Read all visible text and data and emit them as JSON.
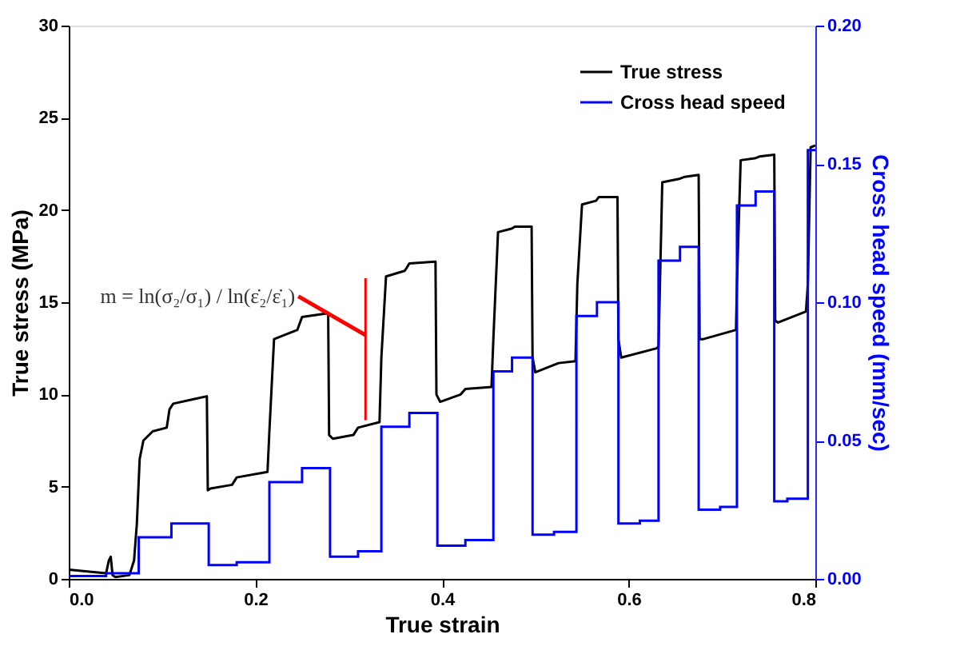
{
  "chart_data": {
    "type": "line",
    "xlabel": "True strain",
    "ylabel": "True stress (MPa)",
    "y2label": "Cross head speed (mm/sec)",
    "xlim": [
      0,
      0.8
    ],
    "xticks": [
      {
        "value": 0,
        "label": "0.0"
      },
      {
        "value": 0.2,
        "label": "0.2"
      },
      {
        "value": 0.4,
        "label": "0.4"
      },
      {
        "value": 0.6,
        "label": "0.6"
      },
      {
        "value": 0.8,
        "label": "0.8"
      }
    ],
    "ylim": [
      0,
      30
    ],
    "yticks": [
      0,
      5,
      10,
      15,
      20,
      25,
      30
    ],
    "y2lim": [
      0,
      0.2
    ],
    "y2ticks": [
      {
        "value": 0,
        "label": "0.00"
      },
      {
        "value": 0.05,
        "label": "0.05"
      },
      {
        "value": 0.1,
        "label": "0.10"
      },
      {
        "value": 0.15,
        "label": "0.15"
      },
      {
        "value": 0.2,
        "label": "0.20"
      }
    ],
    "legend": "top right",
    "grid": false,
    "annotations": [
      "m = ln(σ₂/σ₁) / ln(ε̇₂/ε̇₁)"
    ],
    "series": [
      {
        "name": "True stress",
        "color": "#000000",
        "x": [
          0,
          0.02,
          0.04,
          0.043,
          0.045,
          0.047,
          0.05,
          0.065,
          0.07,
          0.073,
          0.076,
          0.08,
          0.09,
          0.105,
          0.108,
          0.112,
          0.13,
          0.148,
          0.149,
          0.152,
          0.175,
          0.18,
          0.213,
          0.215,
          0.22,
          0.245,
          0.25,
          0.278,
          0.279,
          0.283,
          0.305,
          0.31,
          0.333,
          0.335,
          0.34,
          0.36,
          0.365,
          0.393,
          0.394,
          0.398,
          0.42,
          0.425,
          0.453,
          0.455,
          0.46,
          0.475,
          0.478,
          0.496,
          0.497,
          0.5,
          0.52,
          0.525,
          0.543,
          0.545,
          0.55,
          0.565,
          0.568,
          0.588,
          0.589,
          0.592,
          0.63,
          0.632,
          0.636,
          0.655,
          0.66,
          0.675,
          0.676,
          0.68,
          0.715,
          0.716,
          0.72,
          0.735,
          0.74,
          0.756,
          0.757,
          0.76,
          0.79,
          0.792,
          0.795,
          0.8
        ],
        "values": [
          0.5,
          0.4,
          0.3,
          1.0,
          1.2,
          0.2,
          0.1,
          0.2,
          1.0,
          3,
          6.5,
          7.5,
          8.0,
          8.2,
          9.2,
          9.5,
          9.7,
          9.9,
          4.8,
          4.9,
          5.1,
          5.5,
          5.8,
          8,
          13.0,
          13.5,
          14.2,
          14.4,
          7.8,
          7.6,
          7.8,
          8.2,
          8.5,
          12,
          16.4,
          16.7,
          17.1,
          17.2,
          10,
          9.6,
          10.0,
          10.3,
          10.4,
          13,
          18.8,
          19.0,
          19.1,
          19.1,
          12,
          11.2,
          11.6,
          11.7,
          11.8,
          16,
          20.3,
          20.5,
          20.7,
          20.7,
          13,
          12.0,
          12.5,
          12.6,
          21.5,
          21.7,
          21.8,
          21.9,
          13.0,
          13.0,
          13.5,
          16,
          22.7,
          22.8,
          22.9,
          23.0,
          14,
          13.9,
          14.5,
          16,
          23.4,
          23.5
        ]
      },
      {
        "name": "Cross head speed",
        "color": "#0000ff",
        "type": "step",
        "axis": "y2",
        "x": [
          0,
          0.04,
          0.075,
          0.11,
          0.15,
          0.18,
          0.215,
          0.25,
          0.28,
          0.31,
          0.335,
          0.365,
          0.395,
          0.425,
          0.455,
          0.475,
          0.497,
          0.52,
          0.544,
          0.566,
          0.589,
          0.612,
          0.632,
          0.655,
          0.675,
          0.698,
          0.716,
          0.736,
          0.756,
          0.77,
          0.792,
          0.8
        ],
        "values": [
          0.001,
          0.002,
          0.015,
          0.02,
          0.005,
          0.006,
          0.035,
          0.04,
          0.008,
          0.01,
          0.055,
          0.06,
          0.012,
          0.014,
          0.075,
          0.08,
          0.016,
          0.017,
          0.095,
          0.1,
          0.02,
          0.021,
          0.115,
          0.12,
          0.025,
          0.026,
          0.135,
          0.14,
          0.028,
          0.029,
          0.155,
          0.155
        ]
      },
      {
        "color": "#ff0000",
        "x": [
          0.318,
          0.318
        ],
        "values": [
          8.6,
          16.3
        ]
      }
    ]
  }
}
